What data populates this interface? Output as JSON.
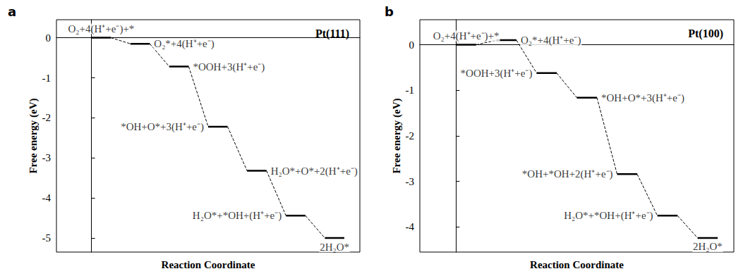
{
  "chart_data": [
    {
      "type": "energy_diagram",
      "panel": "a",
      "title": "Pt(111)",
      "x_label": "Reaction Coordinate",
      "y_label": "Free energy (eV)",
      "categories": [
        "O₂+4(H⁺+e⁻)+*",
        "O₂*+4(H⁺+e⁻)",
        "*OOH+3(H⁺+e⁻)",
        "*OH+O*+3(H⁺+e⁻)",
        "H₂O*+O*+2(H⁺+e⁻)",
        "H₂O*+*OH+(H⁺+e⁻)",
        "2H₂O*"
      ],
      "values": [
        0,
        -0.15,
        -0.72,
        -2.22,
        -3.32,
        -4.44,
        -5.0
      ],
      "ylim": [
        -5.35,
        0.45
      ],
      "yticks": [
        0,
        -1,
        -2,
        -3,
        -4,
        -5
      ],
      "color": "#000000",
      "line_style": "dashed",
      "tick_labels": "y"
    },
    {
      "type": "energy_diagram",
      "panel": "b",
      "title": "Pt(100)",
      "x_label": "Reaction Coordinate",
      "y_label": "Free energy (eV)",
      "categories": [
        "O₂+4(H⁺+e⁻)+*",
        "O₂*+4(H⁺+e⁻)",
        "*OOH+3(H⁺+e⁻)",
        "*OH+O*+3(H⁺+e⁻)",
        "*OH+*OH+2(H⁺+e⁻)",
        "H₂O*+*OH+(H⁺+e⁻)",
        "2H₂O*"
      ],
      "values": [
        0,
        0.1,
        -0.62,
        -1.16,
        -2.84,
        -3.75,
        -4.24
      ],
      "ylim": [
        -4.55,
        0.55
      ],
      "yticks": [
        0,
        -1,
        -2,
        -3,
        -4
      ],
      "color": "#000000",
      "line_style": "dashed",
      "tick_labels": "y"
    }
  ]
}
